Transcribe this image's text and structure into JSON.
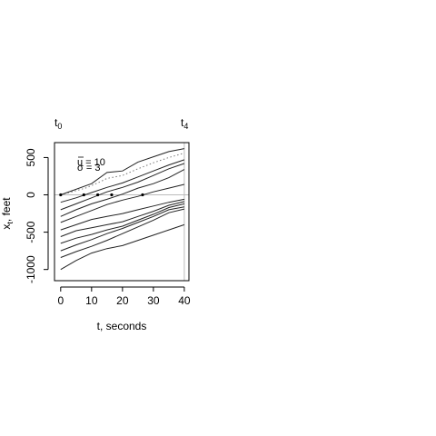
{
  "chart_data": {
    "type": "line",
    "title": "",
    "xlabel": "t, seconds",
    "ylabel_main": "x",
    "ylabel_sub": "t",
    "ylabel_rest": ", feet",
    "xlim": [
      -2,
      41.5
    ],
    "ylim": [
      -1150,
      700
    ],
    "xticks": [
      0,
      10,
      20,
      30,
      40
    ],
    "yticks": [
      -1000,
      -500,
      0,
      500
    ],
    "top_labels": [
      {
        "base": "t",
        "sub": "0",
        "x": 0
      },
      {
        "base": "t",
        "sub": "4",
        "x": 40
      }
    ],
    "annotations": [
      "u = 10",
      "σ = 3"
    ],
    "reference_lines": {
      "horizontal_y": 0,
      "vertical_x": 40,
      "color": "#bbbbbb"
    },
    "dotted_series": {
      "x": [
        0,
        8,
        12,
        15,
        20,
        25,
        30,
        35,
        40
      ],
      "y": [
        0,
        90,
        160,
        220,
        260,
        350,
        430,
        500,
        560
      ]
    },
    "series": [
      {
        "x": [
          0,
          10,
          15,
          20,
          25,
          30,
          35,
          40
        ],
        "y": [
          0,
          150,
          300,
          320,
          440,
          510,
          580,
          620
        ]
      },
      {
        "x": [
          0,
          5,
          10,
          15,
          20,
          25,
          30,
          35,
          40
        ],
        "y": [
          -100,
          -40,
          30,
          100,
          160,
          240,
          320,
          400,
          470
        ]
      },
      {
        "x": [
          0,
          5,
          10,
          15,
          20,
          25,
          30,
          35,
          40
        ],
        "y": [
          -200,
          -120,
          -40,
          40,
          100,
          170,
          260,
          350,
          420
        ]
      },
      {
        "x": [
          0,
          5,
          10,
          15,
          20,
          25,
          30,
          35,
          40
        ],
        "y": [
          -290,
          -200,
          -120,
          -60,
          10,
          90,
          150,
          230,
          340
        ]
      },
      {
        "x": [
          0,
          5,
          10,
          15,
          20,
          25,
          30,
          35,
          40
        ],
        "y": [
          -370,
          -290,
          -210,
          -130,
          -70,
          -20,
          40,
          90,
          140
        ]
      },
      {
        "x": [
          0,
          5,
          10,
          15,
          20,
          25,
          30,
          35,
          40
        ],
        "y": [
          -470,
          -400,
          -330,
          -290,
          -250,
          -200,
          -150,
          -100,
          -60
        ]
      },
      {
        "x": [
          0,
          5,
          10,
          15,
          20,
          25,
          30,
          35,
          40
        ],
        "y": [
          -560,
          -480,
          -440,
          -400,
          -360,
          -290,
          -220,
          -140,
          -90
        ]
      },
      {
        "x": [
          0,
          5,
          10,
          15,
          20,
          25,
          30,
          35,
          40
        ],
        "y": [
          -650,
          -580,
          -530,
          -470,
          -420,
          -340,
          -260,
          -170,
          -120
        ]
      },
      {
        "x": [
          0,
          5,
          10,
          15,
          20,
          25,
          30,
          35,
          40
        ],
        "y": [
          -750,
          -670,
          -600,
          -520,
          -450,
          -370,
          -290,
          -200,
          -160
        ]
      },
      {
        "x": [
          0,
          5,
          10,
          15,
          20,
          25,
          30,
          35,
          40
        ],
        "y": [
          -840,
          -760,
          -690,
          -610,
          -520,
          -430,
          -340,
          -240,
          -190
        ]
      },
      {
        "x": [
          0,
          5,
          10,
          15,
          20,
          25,
          30,
          35,
          40
        ],
        "y": [
          -1000,
          -880,
          -780,
          -720,
          -680,
          -610,
          -540,
          -470,
          -400
        ]
      }
    ],
    "markers": {
      "x": [
        0,
        7.5,
        12,
        16.5,
        26.5
      ],
      "y": [
        0,
        0,
        0,
        0,
        0
      ]
    }
  }
}
